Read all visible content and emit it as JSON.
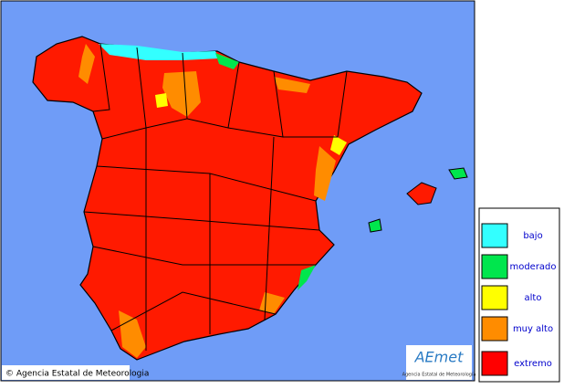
{
  "map": {
    "copyright": "© Agencia Estatal de Meteorologia",
    "logo": {
      "name": "AEmet",
      "subtitle": "Agencia Estatal de Meteorología"
    },
    "legend": [
      {
        "label": "bajo",
        "color": "#33ffff"
      },
      {
        "label": "moderado",
        "color": "#00e64d"
      },
      {
        "label": "alto",
        "color": "#ffff00"
      },
      {
        "label": "muy alto",
        "color": "#ff8c00"
      },
      {
        "label": "extremo",
        "color": "#ff0000"
      }
    ]
  }
}
